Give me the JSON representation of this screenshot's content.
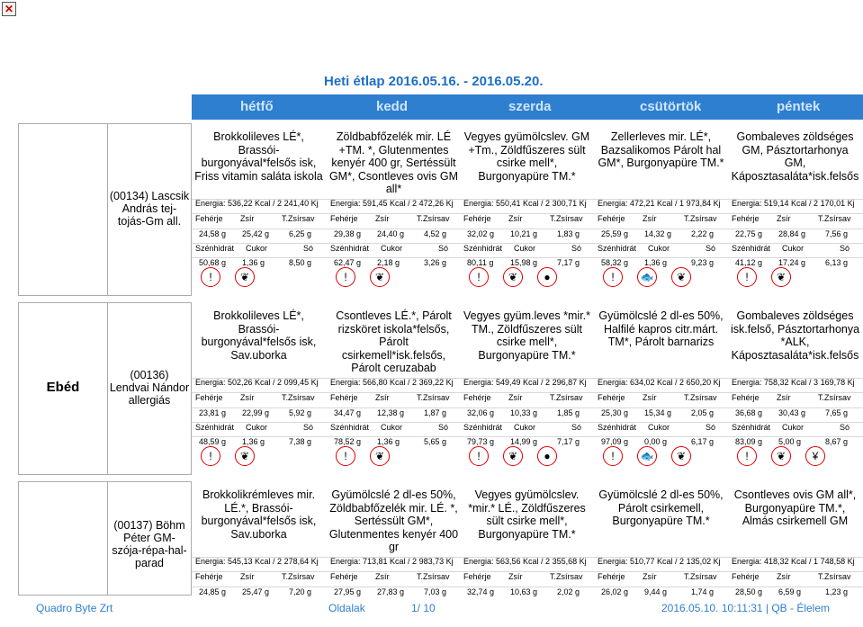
{
  "title": "Heti étlap 2016.05.16. - 2016.05.20.",
  "days": [
    "hétfő",
    "kedd",
    "szerda",
    "csütörtök",
    "péntek"
  ],
  "nutrient_labels": {
    "row1": [
      "Fehérje",
      "Zsír",
      "T.Zsírsav"
    ],
    "row2": [
      "Szénhidrát",
      "Cukor",
      "Só"
    ]
  },
  "sections": [
    {
      "category": "",
      "menu_name": "(00134) Lascsik András tej-tojás-Gm all.",
      "dishes": [
        "Brokkolileves LÉ*, Brassói-burgonyával*felsős isk, Friss vitamin saláta iskola",
        "Zöldbabfőzelék mir. LÉ +TM. *, Glutenmentes kenyér 400 gr, Sertéssült GM*, Csontleves ovis GM all*",
        "Vegyes gyümölcslev. GM +Tm., Zöldfűszeres sült csirke mell*, Burgonyapüre TM.*",
        "Zellerleves mir. LÉ*, Bazsalikomos Párolt hal GM*, Burgonyapüre TM.*",
        "Gombaleves zöldséges GM, Pásztortarhonya GM, Káposztasaláta*isk.felsős"
      ],
      "energy": [
        "Energia: 536,22 Kcal / 2 241,40 Kj",
        "Energia: 591,45 Kcal / 2 472,26 Kj",
        "Energia: 550,41 Kcal / 2 300,71 Kj",
        "Energia: 472,21 Kcal / 1 973,84 Kj",
        "Energia: 519,14 Kcal / 2 170,01 Kj"
      ],
      "values1": [
        [
          "24,58 g",
          "25,42 g",
          "6,25 g"
        ],
        [
          "29,38 g",
          "24,40 g",
          "4,52 g"
        ],
        [
          "32,02 g",
          "10,21 g",
          "1,83 g"
        ],
        [
          "25,59 g",
          "14,32 g",
          "2,22 g"
        ],
        [
          "22,75 g",
          "28,84 g",
          "7,56 g"
        ]
      ],
      "values2": [
        [
          "50,68 g",
          "1,36 g",
          "8,50 g"
        ],
        [
          "62,47 g",
          "2,18 g",
          "3,26 g"
        ],
        [
          "80,11 g",
          "15,98 g",
          "7,17 g"
        ],
        [
          "58,32 g",
          "1,36 g",
          "9,23 g"
        ],
        [
          "41,12 g",
          "17,24 g",
          "6,13 g"
        ]
      ],
      "icons": [
        [
          "allergen-icon",
          "celery-icon"
        ],
        [
          "allergen-icon",
          "celery-icon"
        ],
        [
          "allergen-icon",
          "celery-icon",
          "mustard-icon"
        ],
        [
          "allergen-icon",
          "fish-icon",
          "celery-icon"
        ],
        [
          "allergen-icon",
          "celery-icon"
        ]
      ]
    },
    {
      "category": "Ebéd",
      "menu_name": "(00136) Lendvai Nándor allergiás",
      "dishes": [
        "Brokkolileves LÉ*, Brassói-burgonyával*felsős isk, Sav.uborka",
        "Csontleves LÉ.*, Párolt rizsköret iskola*felsős, Párolt csirkemell*isk.felsős, Párolt ceruzabab",
        "Vegyes gyüm.leves *mir.* TM., Zöldfűszeres sült csirke mell*, Burgonyapüre TM.*",
        "Gyümölcslé 2 dl-es 50%, Halfilé kapros citr.márt. TM*, Párolt barnarizs",
        "Gombaleves zöldséges isk.felső, Pásztortarhonya *ALK, Káposztasaláta*isk.felsős"
      ],
      "energy": [
        "Energia: 502,26 Kcal / 2 099,45 Kj",
        "Energia: 566,80 Kcal / 2 369,22 Kj",
        "Energia: 549,49 Kcal / 2 296,87 Kj",
        "Energia: 634,02 Kcal / 2 650,20 Kj",
        "Energia: 758,32 Kcal / 3 169,78 Kj"
      ],
      "values1": [
        [
          "23,81 g",
          "22,99 g",
          "5,92 g"
        ],
        [
          "34,47 g",
          "12,38 g",
          "1,87 g"
        ],
        [
          "32,06 g",
          "10,33 g",
          "1,85 g"
        ],
        [
          "25,30 g",
          "15,34 g",
          "2,05 g"
        ],
        [
          "36,68 g",
          "30,43 g",
          "7,65 g"
        ]
      ],
      "values2": [
        [
          "48,59 g",
          "1,36 g",
          "7,38 g"
        ],
        [
          "78,52 g",
          "1,36 g",
          "5,65 g"
        ],
        [
          "79,73 g",
          "14,99 g",
          "7,17 g"
        ],
        [
          "97,09 g",
          "0,00 g",
          "6,17 g"
        ],
        [
          "83,09 g",
          "5,00 g",
          "8,67 g"
        ]
      ],
      "icons": [
        [
          "allergen-icon",
          "celery-icon"
        ],
        [
          "allergen-icon",
          "celery-icon"
        ],
        [
          "allergen-icon",
          "celery-icon",
          "mustard-icon"
        ],
        [
          "allergen-icon",
          "fish-icon",
          "celery-icon"
        ],
        [
          "allergen-icon",
          "celery-icon",
          "wheat-icon"
        ]
      ]
    },
    {
      "category": "",
      "menu_name": "(00137) Böhm Péter GM-szója-répa-hal-parad",
      "dishes": [
        "Brokkolikrémleves mir. LÉ.*, Brassói-burgonyával*felsős isk, Sav.uborka",
        "Gyümölcslé 2 dl-es 50%, Zöldbabfőzelék mir. LÉ. *, Sertéssült GM*, Glutenmentes kenyér 400 gr",
        "Vegyes gyümölcslev. *mir.* LÉ., Zöldfűszeres sült csirke mell*, Burgonyapüre TM.*",
        "Gyümölcslé 2 dl-es 50%, Párolt csirkemell, Burgonyapüre TM.*",
        "Csontleves ovis GM all*, Burgonyapüre TM.*, Almás csirkemell GM"
      ],
      "energy": [
        "Energia: 545,13 Kcal / 2 278,64 Kj",
        "Energia: 713,81 Kcal / 2 983,73 Kj",
        "Energia: 563,56 Kcal / 2 355,68 Kj",
        "Energia: 510,77 Kcal / 2 135,02 Kj",
        "Energia: 418,32 Kcal / 1 748,58 Kj"
      ],
      "values1": [
        [
          "24,85 g",
          "25,47 g",
          "7,20 g"
        ],
        [
          "27,95 g",
          "27,83 g",
          "7,03 g"
        ],
        [
          "32,74 g",
          "10,63 g",
          "2,02 g"
        ],
        [
          "26,02 g",
          "9,44 g",
          "1,74 g"
        ],
        [
          "28,50 g",
          "6,59 g",
          "1,23 g"
        ]
      ]
    }
  ],
  "footer": {
    "company": "Quadro Byte Zrt",
    "page_label": "Oldalak",
    "page": "1/ 10",
    "timestamp": "2016.05.10. 10:11:31 | QB - Élelem"
  },
  "colors": {
    "accent": "#2f7fd0",
    "allergen_ring": "#dd0000"
  }
}
